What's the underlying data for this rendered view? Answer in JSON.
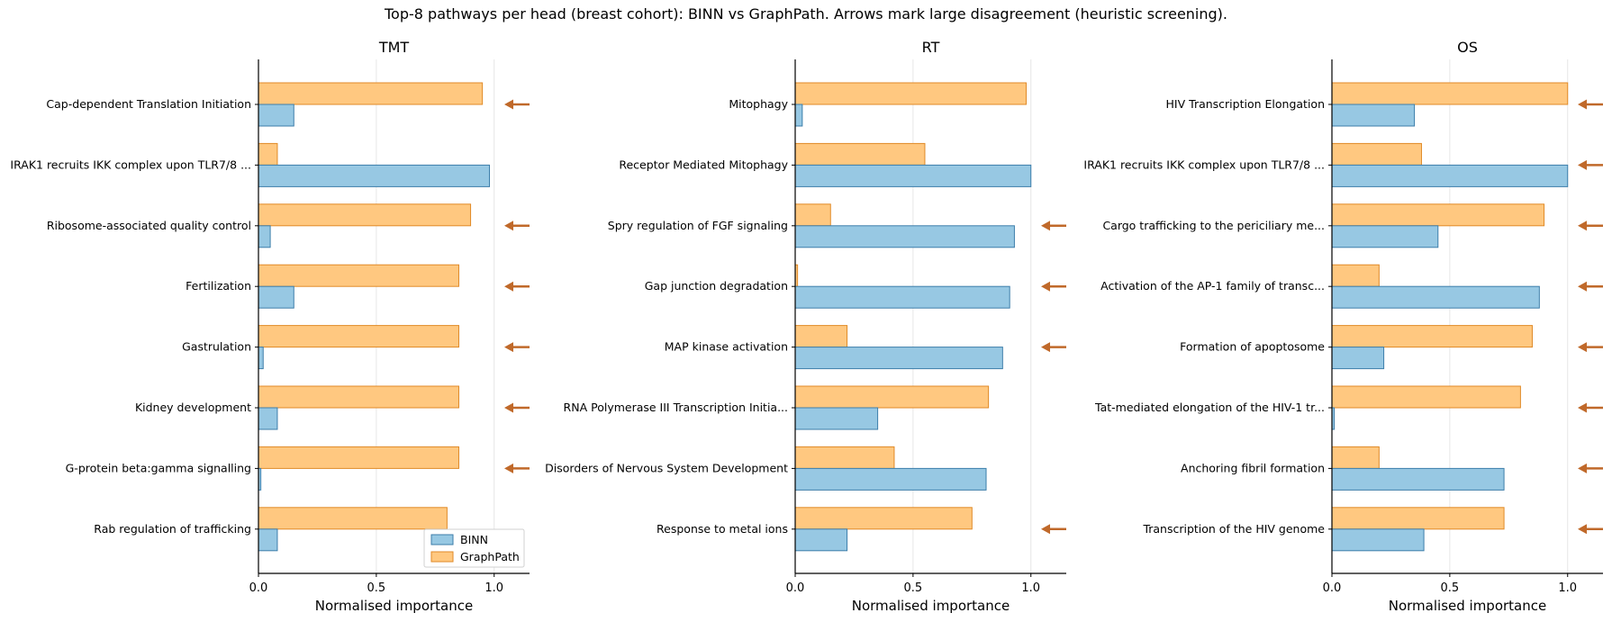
{
  "suptitle": "Top-8 pathways per head (breast cohort): BINN vs GraphPath. Arrows mark large disagreement (heuristic screening).",
  "colors": {
    "binn_fill": "#97c8e3",
    "binn_edge": "#3d7eaa",
    "graphpath_fill": "#ffc880",
    "graphpath_edge": "#e08a27",
    "arrow": "#c0692a",
    "grid": "#e6e6e6"
  },
  "chart_data": [
    {
      "type": "bar",
      "orientation": "horizontal",
      "title": "TMT",
      "xlabel": "Normalised importance",
      "xlim": [
        0,
        1.15
      ],
      "xticks": [
        "0.0",
        "0.5",
        "1.0"
      ],
      "grid": "x",
      "legend": "lower-right",
      "categories": [
        "Cap-dependent Translation Initiation",
        "IRAK1 recruits IKK complex upon TLR7/8 ...",
        "Ribosome-associated quality control",
        "Fertilization",
        "Gastrulation",
        "Kidney development",
        "G-protein beta:gamma signalling",
        "Rab regulation of trafficking"
      ],
      "series": [
        {
          "name": "BINN",
          "values": [
            0.15,
            0.98,
            0.05,
            0.15,
            0.02,
            0.08,
            0.01,
            0.08
          ]
        },
        {
          "name": "GraphPath",
          "values": [
            0.95,
            0.08,
            0.9,
            0.85,
            0.85,
            0.85,
            0.85,
            0.8
          ]
        }
      ],
      "arrows": [
        true,
        false,
        true,
        true,
        true,
        true,
        true,
        false
      ]
    },
    {
      "type": "bar",
      "orientation": "horizontal",
      "title": "RT",
      "xlabel": "Normalised importance",
      "xlim": [
        0,
        1.15
      ],
      "xticks": [
        "0.0",
        "0.5",
        "1.0"
      ],
      "grid": "x",
      "categories": [
        "Mitophagy",
        "Receptor Mediated Mitophagy",
        "Spry regulation of FGF signaling",
        "Gap junction degradation",
        "MAP kinase activation",
        "RNA Polymerase III Transcription Initia...",
        "Disorders of Nervous System Development",
        "Response to metal ions"
      ],
      "series": [
        {
          "name": "BINN",
          "values": [
            0.03,
            1.0,
            0.93,
            0.91,
            0.88,
            0.35,
            0.81,
            0.22
          ]
        },
        {
          "name": "GraphPath",
          "values": [
            0.98,
            0.55,
            0.15,
            0.01,
            0.22,
            0.82,
            0.42,
            0.75
          ]
        }
      ],
      "arrows": [
        false,
        false,
        true,
        true,
        true,
        false,
        false,
        true
      ]
    },
    {
      "type": "bar",
      "orientation": "horizontal",
      "title": "OS",
      "xlabel": "Normalised importance",
      "xlim": [
        0,
        1.15
      ],
      "xticks": [
        "0.0",
        "0.5",
        "1.0"
      ],
      "grid": "x",
      "categories": [
        "HIV Transcription Elongation",
        "IRAK1 recruits IKK complex upon TLR7/8 ...",
        "Cargo trafficking to the periciliary me...",
        "Activation of the AP-1 family of transc...",
        "Formation of apoptosome",
        "Tat-mediated elongation of the HIV-1 tr...",
        "Anchoring fibril formation",
        "Transcription of the HIV genome"
      ],
      "series": [
        {
          "name": "BINN",
          "values": [
            0.35,
            1.0,
            0.45,
            0.88,
            0.22,
            0.01,
            0.73,
            0.39
          ]
        },
        {
          "name": "GraphPath",
          "values": [
            1.0,
            0.38,
            0.9,
            0.2,
            0.85,
            0.8,
            0.2,
            0.73
          ]
        }
      ],
      "arrows": [
        true,
        true,
        true,
        true,
        true,
        true,
        true,
        true
      ]
    }
  ]
}
